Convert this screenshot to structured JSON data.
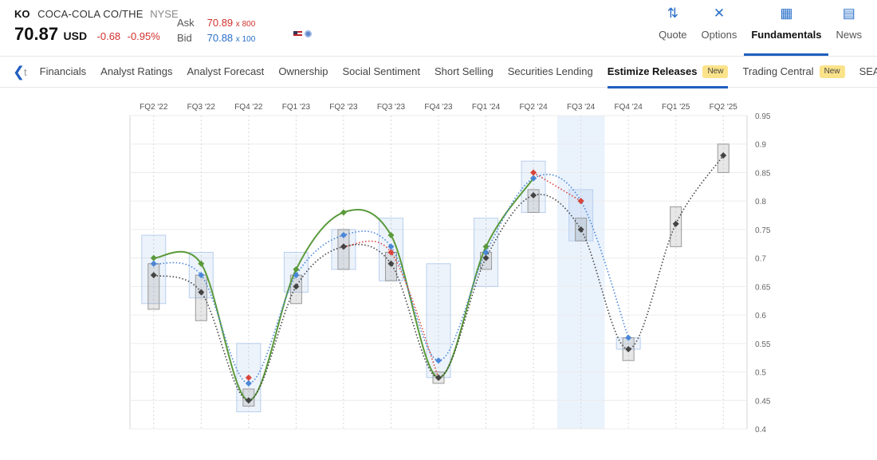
{
  "ticker": {
    "symbol": "KO",
    "name": "COCA-COLA CO/THE",
    "exchange": "NYSE",
    "price": "70.87",
    "currency": "USD",
    "change": "-0.68",
    "change_pct": "-0.95%"
  },
  "quote": {
    "ask_label": "Ask",
    "ask": "70.89",
    "ask_size": "x 800",
    "bid_label": "Bid",
    "bid": "70.88",
    "bid_size": "x 100"
  },
  "topnav": [
    {
      "label": "Quote",
      "icon": "sort-arrows-icon"
    },
    {
      "label": "Options",
      "icon": "options-icon"
    },
    {
      "label": "Fundamentals",
      "icon": "building-icon",
      "active": true
    },
    {
      "label": "News",
      "icon": "newspaper-icon"
    }
  ],
  "subnav": {
    "back_partial": "t",
    "tabs": [
      {
        "label": "Financials"
      },
      {
        "label": "Analyst Ratings"
      },
      {
        "label": "Analyst Forecast"
      },
      {
        "label": "Ownership"
      },
      {
        "label": "Social Sentiment"
      },
      {
        "label": "Short Selling"
      },
      {
        "label": "Securities Lending"
      },
      {
        "label": "Estimize Releases",
        "active": true,
        "badge": "New"
      },
      {
        "label": "Trading Central",
        "badge": "New"
      },
      {
        "label": "SEARCH"
      }
    ]
  },
  "colors": {
    "accent": "#1f5fbf",
    "green": "#5a9a3a",
    "blue": "#4a86d8",
    "red": "#d9443a",
    "dark": "#444444"
  },
  "chart_data": {
    "type": "line",
    "categories": [
      "FQ2 '22",
      "FQ3 '22",
      "FQ4 '22",
      "FQ1 '23",
      "FQ2 '23",
      "FQ3 '23",
      "FQ4 '23",
      "FQ1 '24",
      "FQ2 '24",
      "FQ3 '24",
      "FQ4 '24",
      "FQ1 '25",
      "FQ2 '25"
    ],
    "ylim": [
      0.4,
      0.95
    ],
    "yticks": [
      "0.95",
      "0.9",
      "0.85",
      "0.8",
      "0.75",
      "0.7",
      "0.65",
      "0.6",
      "0.55",
      "0.5",
      "0.45",
      "0.4"
    ],
    "highlight_index": 9,
    "series": [
      {
        "color": "#5a9a3a",
        "style": "solid",
        "values": [
          0.7,
          0.69,
          0.45,
          0.68,
          0.78,
          0.74,
          0.49,
          0.72,
          0.84,
          null,
          null,
          null,
          null
        ]
      },
      {
        "color": "#4a86d8",
        "style": "dotted",
        "values": [
          0.69,
          0.67,
          0.48,
          0.67,
          0.74,
          0.72,
          0.52,
          0.71,
          0.84,
          0.8,
          0.56,
          null,
          null
        ]
      },
      {
        "color": "#d9443a",
        "style": "dotted",
        "values": [
          null,
          null,
          0.49,
          null,
          0.72,
          0.71,
          0.49,
          null,
          0.85,
          0.8,
          null,
          null,
          null
        ]
      },
      {
        "color": "#444444",
        "style": "dotted",
        "values": [
          0.67,
          0.64,
          0.45,
          0.65,
          0.72,
          0.69,
          0.49,
          0.7,
          0.81,
          0.75,
          0.54,
          0.76,
          0.88
        ]
      }
    ],
    "blue_ranges": [
      [
        0.62,
        0.74
      ],
      [
        0.63,
        0.71
      ],
      [
        0.43,
        0.55
      ],
      [
        0.64,
        0.71
      ],
      [
        0.68,
        0.75
      ],
      [
        0.66,
        0.77
      ],
      [
        0.49,
        0.69
      ],
      [
        0.65,
        0.77
      ],
      [
        0.78,
        0.87
      ],
      [
        0.73,
        0.82
      ],
      [
        0.54,
        0.56
      ],
      null,
      null
    ],
    "gray_ranges": [
      [
        0.61,
        0.69
      ],
      [
        0.59,
        0.67
      ],
      [
        0.44,
        0.47
      ],
      [
        0.62,
        0.67
      ],
      [
        0.68,
        0.75
      ],
      [
        0.66,
        0.71
      ],
      [
        0.48,
        0.5
      ],
      [
        0.68,
        0.71
      ],
      [
        0.78,
        0.82
      ],
      [
        0.73,
        0.77
      ],
      [
        0.52,
        0.56
      ],
      [
        0.72,
        0.79
      ],
      [
        0.85,
        0.9
      ]
    ]
  }
}
